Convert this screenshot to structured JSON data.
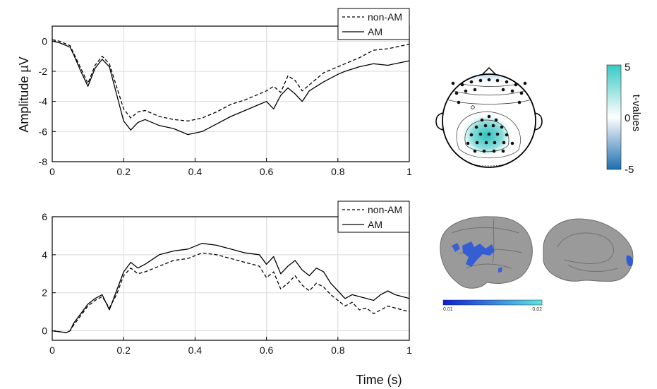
{
  "chart_data": [
    {
      "type": "line",
      "panel": "top",
      "ylabel": "Amplitude µV",
      "xlabel": "",
      "xlim": [
        0,
        1
      ],
      "ylim": [
        -8,
        1
      ],
      "xticks": [
        0,
        0.2,
        0.4,
        0.6,
        0.8,
        1
      ],
      "xtick_labels": [
        "0",
        "0.2",
        "0.4",
        "0.6",
        "0.8",
        "1"
      ],
      "yticks": [
        -8,
        -6,
        -4,
        -2,
        0
      ],
      "ytick_labels": [
        "-8",
        "-6",
        "-4",
        "-2",
        "0"
      ],
      "grid": true,
      "legend": "top-right",
      "series": [
        {
          "name": "non-AM",
          "style": "dashed",
          "x": [
            0,
            0.02,
            0.04,
            0.05,
            0.06,
            0.08,
            0.1,
            0.12,
            0.14,
            0.16,
            0.18,
            0.2,
            0.22,
            0.24,
            0.26,
            0.3,
            0.34,
            0.38,
            0.42,
            0.46,
            0.5,
            0.54,
            0.58,
            0.6,
            0.62,
            0.64,
            0.66,
            0.68,
            0.7,
            0.72,
            0.74,
            0.76,
            0.8,
            0.82,
            0.86,
            0.9,
            0.94,
            0.96,
            1.0
          ],
          "y": [
            0.1,
            0.0,
            -0.2,
            -0.3,
            -0.8,
            -1.8,
            -2.8,
            -1.6,
            -1.0,
            -1.5,
            -3.0,
            -4.5,
            -5.1,
            -4.7,
            -4.6,
            -5.0,
            -5.2,
            -5.3,
            -5.1,
            -4.7,
            -4.2,
            -3.9,
            -3.5,
            -3.3,
            -3.0,
            -3.4,
            -2.3,
            -2.6,
            -3.3,
            -2.9,
            -2.5,
            -2.1,
            -1.7,
            -1.5,
            -1.1,
            -0.6,
            -0.5,
            -0.4,
            -0.2
          ]
        },
        {
          "name": "AM",
          "style": "solid",
          "x": [
            0,
            0.02,
            0.04,
            0.05,
            0.06,
            0.08,
            0.1,
            0.12,
            0.14,
            0.16,
            0.18,
            0.2,
            0.22,
            0.24,
            0.26,
            0.3,
            0.34,
            0.38,
            0.42,
            0.46,
            0.5,
            0.54,
            0.58,
            0.6,
            0.62,
            0.64,
            0.66,
            0.68,
            0.7,
            0.72,
            0.74,
            0.76,
            0.8,
            0.82,
            0.86,
            0.9,
            0.94,
            0.96,
            1.0
          ],
          "y": [
            0.0,
            -0.1,
            -0.3,
            -0.4,
            -0.9,
            -2.0,
            -3.0,
            -1.8,
            -1.2,
            -1.7,
            -3.5,
            -5.3,
            -5.9,
            -5.4,
            -5.2,
            -5.6,
            -5.8,
            -6.2,
            -6.0,
            -5.5,
            -5.0,
            -4.6,
            -4.2,
            -4.0,
            -4.5,
            -3.6,
            -3.1,
            -3.5,
            -4.0,
            -3.3,
            -3.0,
            -2.7,
            -2.2,
            -2.0,
            -1.7,
            -1.5,
            -1.6,
            -1.5,
            -1.3
          ]
        }
      ]
    },
    {
      "type": "line",
      "panel": "bottom",
      "ylabel": "",
      "xlabel": "Time (s)",
      "xlim": [
        0,
        1
      ],
      "ylim": [
        -0.5,
        6
      ],
      "xticks": [
        0,
        0.2,
        0.4,
        0.6,
        0.8,
        1
      ],
      "xtick_labels": [
        "0",
        "0.2",
        "0.4",
        "0.6",
        "0.8",
        "1"
      ],
      "yticks": [
        0,
        2,
        4,
        6
      ],
      "ytick_labels": [
        "0",
        "2",
        "4",
        "6"
      ],
      "grid": true,
      "legend": "top-right",
      "series": [
        {
          "name": "non-AM",
          "style": "dashed",
          "x": [
            0,
            0.02,
            0.04,
            0.05,
            0.06,
            0.08,
            0.1,
            0.12,
            0.14,
            0.16,
            0.18,
            0.2,
            0.22,
            0.24,
            0.26,
            0.3,
            0.34,
            0.38,
            0.42,
            0.46,
            0.5,
            0.54,
            0.58,
            0.6,
            0.62,
            0.64,
            0.66,
            0.68,
            0.7,
            0.72,
            0.74,
            0.76,
            0.78,
            0.8,
            0.82,
            0.84,
            0.86,
            0.88,
            0.9,
            0.92,
            0.94,
            0.96,
            1.0
          ],
          "y": [
            0.0,
            -0.05,
            -0.1,
            0.0,
            0.3,
            0.8,
            1.3,
            1.6,
            1.8,
            1.2,
            1.9,
            2.9,
            3.3,
            3.0,
            3.1,
            3.4,
            3.7,
            3.8,
            4.1,
            4.0,
            3.8,
            3.6,
            3.4,
            2.8,
            3.1,
            2.2,
            2.5,
            2.9,
            2.4,
            2.1,
            2.5,
            2.3,
            1.9,
            1.6,
            1.3,
            1.5,
            1.1,
            1.2,
            0.9,
            1.1,
            1.3,
            1.2,
            1.0
          ]
        },
        {
          "name": "AM",
          "style": "solid",
          "x": [
            0,
            0.02,
            0.04,
            0.05,
            0.06,
            0.08,
            0.1,
            0.12,
            0.14,
            0.16,
            0.18,
            0.2,
            0.22,
            0.24,
            0.26,
            0.3,
            0.34,
            0.38,
            0.42,
            0.46,
            0.5,
            0.54,
            0.58,
            0.6,
            0.62,
            0.64,
            0.66,
            0.68,
            0.7,
            0.72,
            0.74,
            0.76,
            0.78,
            0.8,
            0.82,
            0.84,
            0.86,
            0.88,
            0.9,
            0.92,
            0.94,
            0.96,
            1.0
          ],
          "y": [
            0.0,
            -0.05,
            -0.1,
            0.0,
            0.4,
            0.9,
            1.4,
            1.7,
            1.9,
            1.1,
            2.1,
            3.1,
            3.6,
            3.3,
            3.5,
            4.0,
            4.2,
            4.3,
            4.6,
            4.5,
            4.3,
            4.1,
            4.0,
            3.5,
            3.9,
            3.0,
            3.4,
            3.7,
            3.2,
            2.9,
            3.3,
            3.1,
            2.5,
            2.1,
            1.7,
            1.9,
            1.8,
            1.7,
            1.6,
            1.9,
            2.1,
            1.9,
            1.7
          ]
        }
      ]
    }
  ],
  "topo_colorbar": {
    "label": "t-values",
    "ticks": [
      "5",
      "0",
      "-5"
    ],
    "colors": [
      "#39c9c4",
      "#ffffff",
      "#1d6fae"
    ]
  },
  "brain_colorbar": {
    "ticks": [
      "0.01",
      "0.02"
    ],
    "colors": [
      "#0c1fd6",
      "#5fe6e6"
    ]
  },
  "brain_panel": {
    "highlight_color": "#2f5bd8"
  }
}
